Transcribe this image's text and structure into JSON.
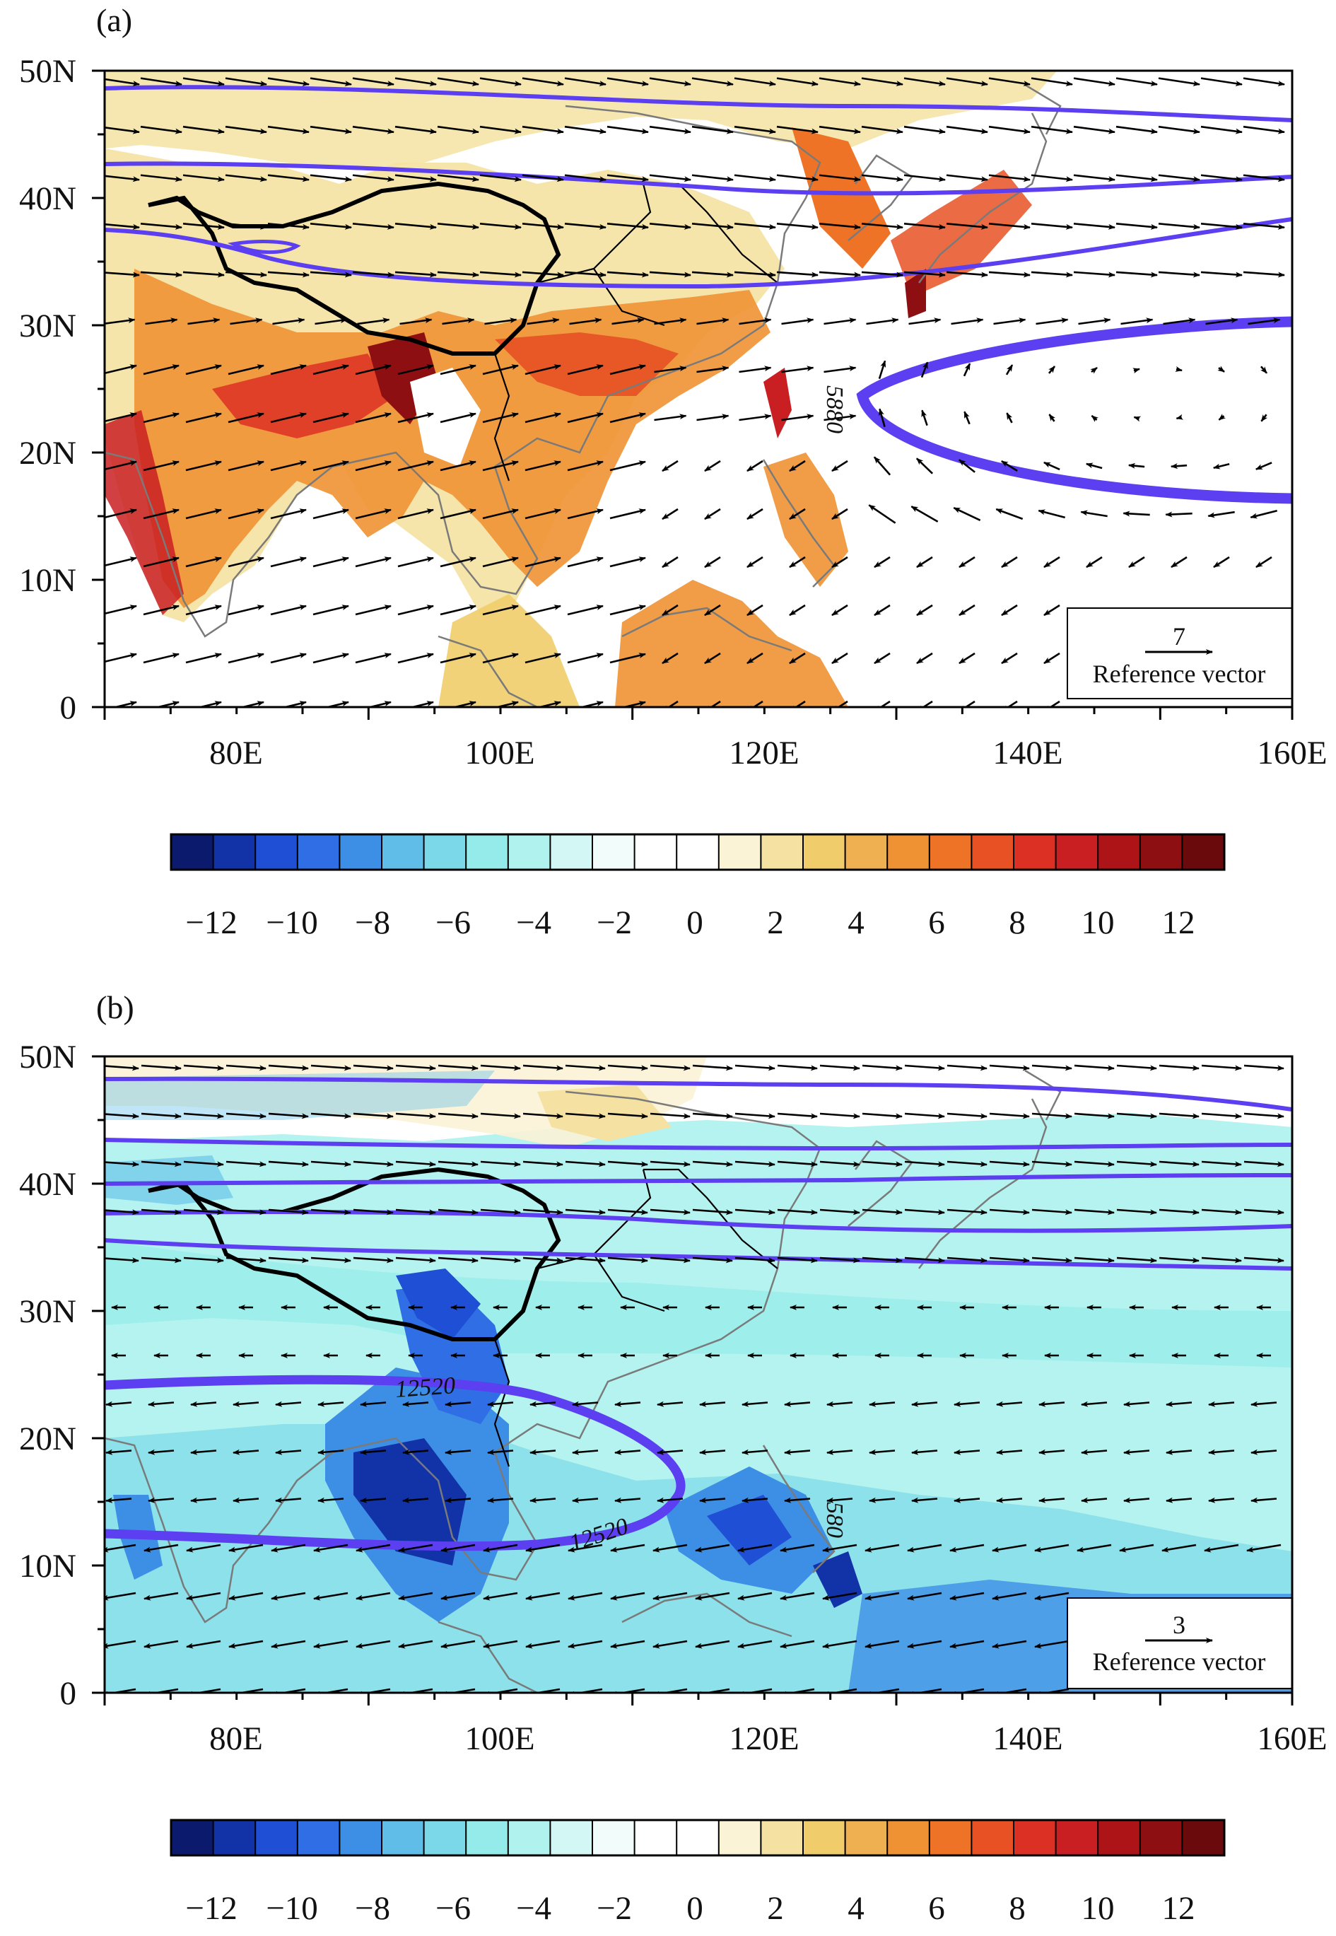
{
  "figure": {
    "panels": [
      {
        "id": "a",
        "label": "(a)",
        "map": {
          "lon_range": [
            70,
            160
          ],
          "lat_range": [
            0,
            50
          ],
          "x_ticks": [
            "80E",
            "100E",
            "120E",
            "140E",
            "160E"
          ],
          "y_ticks": [
            "0",
            "10N",
            "20N",
            "30N",
            "40N",
            "50N"
          ],
          "field_colormap": "blue-white-red",
          "anomaly_region": "positive values (yellow-orange-red) over India, Bay of Bengal, Indochina, southern China, Korea, Japan, Philippines and Borneo",
          "contour_labels": [
            "5880"
          ],
          "contour_color": "#5b3ff0",
          "reference_vector": {
            "magnitude": "7",
            "label": "Reference vector"
          },
          "wind_regime": "westerlies north of ~27N, southwesterlies over South/Southeast Asia, anticyclonic easterlies over western Pacific"
        },
        "colorbar": {
          "tick_labels": [
            "−12",
            "−10",
            "−8",
            "−6",
            "−4",
            "−2",
            "0",
            "2",
            "4",
            "6",
            "8",
            "10",
            "12"
          ],
          "colors": [
            "#0c1a6e",
            "#1232a8",
            "#1f4fd4",
            "#2f6ee4",
            "#3d8fe6",
            "#5fbde8",
            "#7ad8e8",
            "#94ebea",
            "#b0f2ee",
            "#d3f7f4",
            "#f1fcfb",
            "#ffffff",
            "#ffffff",
            "#fbf3d6",
            "#f5e2a2",
            "#f0cd6a",
            "#eeb050",
            "#ef9234",
            "#ee7327",
            "#e75124",
            "#dd3024",
            "#c91e22",
            "#ac1418",
            "#8d0f12",
            "#6b0a0c"
          ]
        }
      },
      {
        "id": "b",
        "label": "(b)",
        "map": {
          "lon_range": [
            70,
            160
          ],
          "lat_range": [
            0,
            50
          ],
          "x_ticks": [
            "80E",
            "100E",
            "120E",
            "140E",
            "160E"
          ],
          "y_ticks": [
            "0",
            "10N",
            "20N",
            "30N",
            "40N",
            "50N"
          ],
          "field_colormap": "blue-white-red",
          "anomaly_region": "negative values (cyan-blue) over Bay of Bengal, Indochina, South China Sea, Philippines and tropical western Pacific",
          "contour_labels": [
            "12520",
            "12520",
            "580"
          ],
          "contour_color": "#5b3ff0",
          "reference_vector": {
            "magnitude": "3",
            "label": "Reference vector"
          },
          "wind_regime": "westerlies north of ~30N, easterlies south of ~27N"
        },
        "colorbar": {
          "tick_labels": [
            "−12",
            "−10",
            "−8",
            "−6",
            "−4",
            "−2",
            "0",
            "2",
            "4",
            "6",
            "8",
            "10",
            "12"
          ],
          "colors": [
            "#0c1a6e",
            "#1232a8",
            "#1f4fd4",
            "#2f6ee4",
            "#3d8fe6",
            "#5fbde8",
            "#7ad8e8",
            "#94ebea",
            "#b0f2ee",
            "#d3f7f4",
            "#f1fcfb",
            "#ffffff",
            "#ffffff",
            "#fbf3d6",
            "#f5e2a2",
            "#f0cd6a",
            "#eeb050",
            "#ef9234",
            "#ee7327",
            "#e75124",
            "#dd3024",
            "#c91e22",
            "#ac1418",
            "#8d0f12",
            "#6b0a0c"
          ]
        }
      }
    ]
  }
}
